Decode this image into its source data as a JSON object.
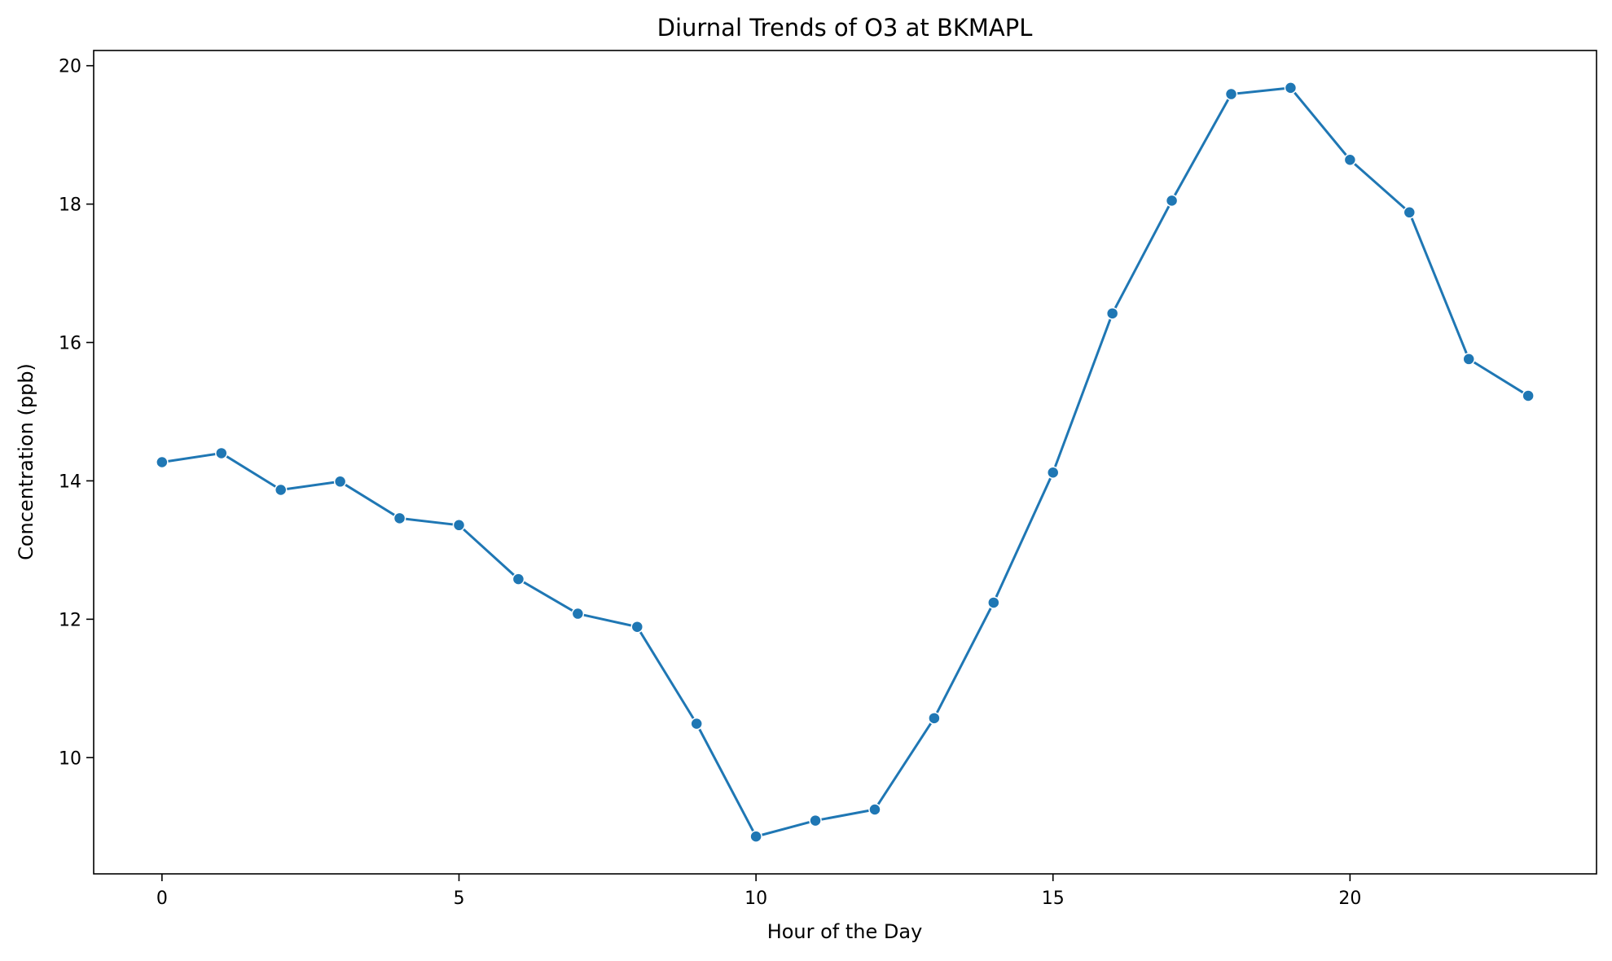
{
  "chart_data": {
    "type": "line",
    "title": "Diurnal Trends of O3 at BKMAPL",
    "xlabel": "Hour of the Day",
    "ylabel": "Concentration (ppb)",
    "xlim": [
      -1.15,
      24.15
    ],
    "ylim": [
      8.32,
      20.22
    ],
    "xticks": [
      0,
      5,
      10,
      15,
      20
    ],
    "yticks": [
      10,
      12,
      14,
      16,
      18,
      20
    ],
    "grid": false,
    "legend": "none",
    "series": [
      {
        "color": "#1f77b4",
        "marker": "circle",
        "x": [
          0,
          1,
          2,
          3,
          4,
          5,
          6,
          7,
          8,
          9,
          10,
          11,
          12,
          13,
          14,
          15,
          16,
          17,
          18,
          19,
          20,
          21,
          22,
          23
        ],
        "y": [
          14.27,
          14.4,
          13.87,
          13.99,
          13.46,
          13.36,
          12.58,
          12.08,
          11.89,
          10.49,
          8.86,
          9.09,
          9.25,
          10.57,
          12.24,
          14.12,
          16.42,
          18.05,
          19.59,
          19.68,
          18.64,
          17.88,
          15.76,
          15.23
        ]
      }
    ]
  }
}
